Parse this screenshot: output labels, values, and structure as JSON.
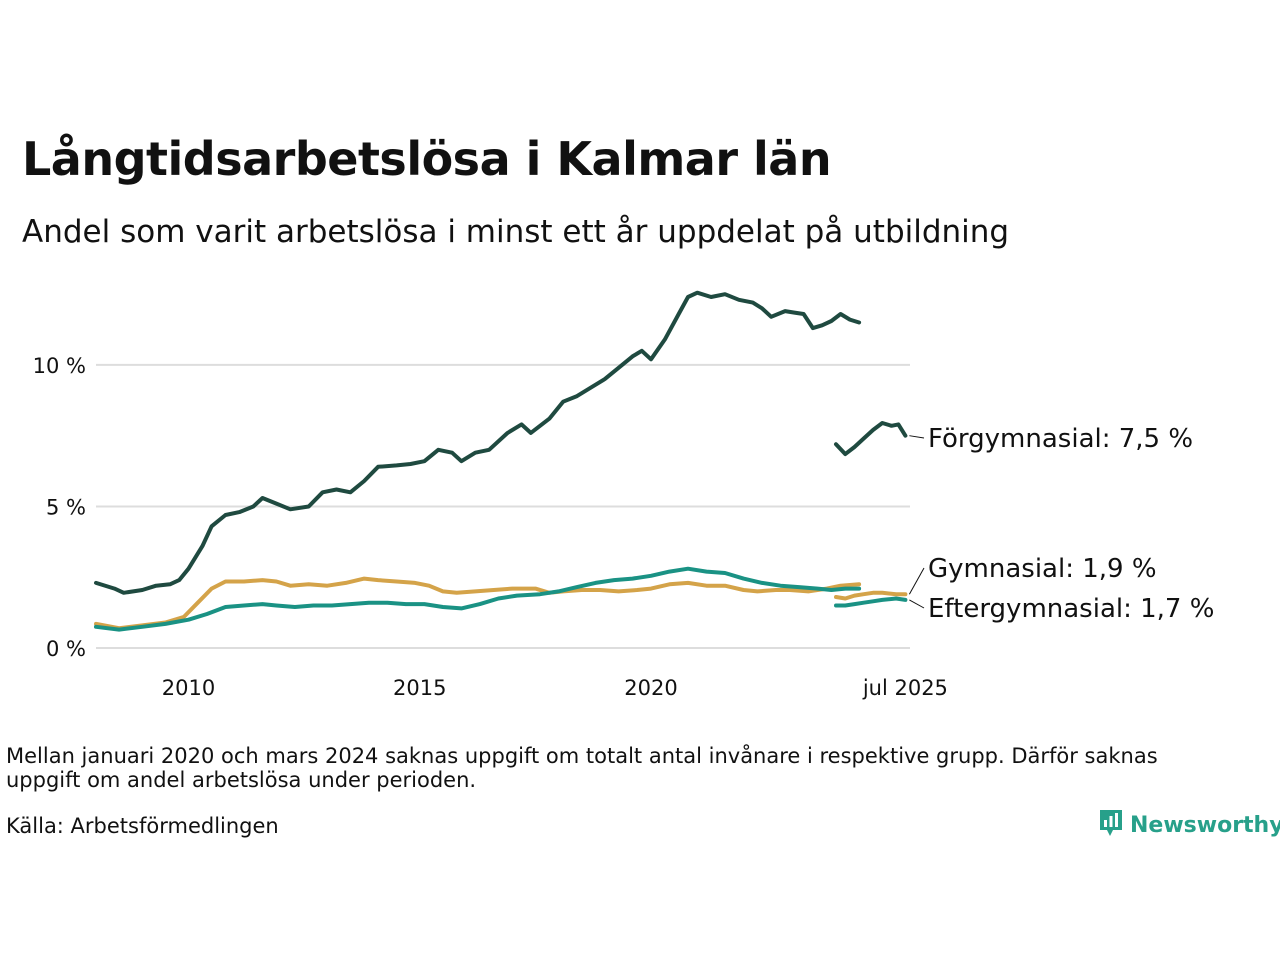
{
  "header": {
    "title": "Långtidsarbetslösa i Kalmar län",
    "subtitle": "Andel som varit arbetslösa i minst ett år uppdelat på utbildning"
  },
  "footer": {
    "note": "Mellan januari 2020 och mars 2024 saknas uppgift om totalt antal invånare i respektive grupp. Därför saknas uppgift om andel arbetslösa under perioden.",
    "source": "Källa: Arbetsförmedlingen",
    "brand": "Newsworthy",
    "brand_icon": "bar-chart-logo-icon"
  },
  "chart_data": {
    "type": "line",
    "x_unit": "date (year-month)",
    "y_unit": "%",
    "ylim": [
      0,
      13
    ],
    "yticks": [
      0,
      5,
      10
    ],
    "ytick_labels": [
      "0 %",
      "5 %",
      "10 %"
    ],
    "xticks": [
      2010,
      2015,
      2020,
      2025.5
    ],
    "xtick_labels": [
      "2010",
      "2015",
      "2020",
      "jul 2025"
    ],
    "xlim": [
      2008.0,
      2025.6
    ],
    "grid": "horizontal",
    "legend": "end-of-line labels",
    "series": [
      {
        "name": "Förgymnasial",
        "label": "Förgymnasial: 7,5 %",
        "color": "#1f4a40",
        "segments": [
          [
            [
              2008.0,
              2.3
            ],
            [
              2008.4,
              2.1
            ],
            [
              2008.6,
              1.95
            ],
            [
              2009.0,
              2.05
            ],
            [
              2009.3,
              2.2
            ],
            [
              2009.6,
              2.25
            ],
            [
              2009.8,
              2.4
            ],
            [
              2010.0,
              2.8
            ],
            [
              2010.3,
              3.6
            ],
            [
              2010.5,
              4.3
            ],
            [
              2010.8,
              4.7
            ],
            [
              2011.1,
              4.8
            ],
            [
              2011.4,
              5.0
            ],
            [
              2011.6,
              5.3
            ],
            [
              2011.9,
              5.1
            ],
            [
              2012.2,
              4.9
            ],
            [
              2012.6,
              5.0
            ],
            [
              2012.9,
              5.5
            ],
            [
              2013.2,
              5.6
            ],
            [
              2013.5,
              5.5
            ],
            [
              2013.8,
              5.9
            ],
            [
              2014.1,
              6.4
            ],
            [
              2014.5,
              6.45
            ],
            [
              2014.8,
              6.5
            ],
            [
              2015.1,
              6.6
            ],
            [
              2015.4,
              7.0
            ],
            [
              2015.7,
              6.9
            ],
            [
              2015.9,
              6.6
            ],
            [
              2016.2,
              6.9
            ],
            [
              2016.5,
              7.0
            ],
            [
              2016.9,
              7.6
            ],
            [
              2017.2,
              7.9
            ],
            [
              2017.4,
              7.6
            ],
            [
              2017.8,
              8.1
            ],
            [
              2018.1,
              8.7
            ],
            [
              2018.4,
              8.9
            ],
            [
              2018.7,
              9.2
            ],
            [
              2019.0,
              9.5
            ],
            [
              2019.3,
              9.9
            ],
            [
              2019.6,
              10.3
            ],
            [
              2019.8,
              10.5
            ],
            [
              2020.0,
              10.2
            ],
            [
              2020.3,
              10.9
            ],
            [
              2020.6,
              11.8
            ],
            [
              2020.8,
              12.4
            ],
            [
              2021.0,
              12.55
            ],
            [
              2021.3,
              12.4
            ],
            [
              2021.6,
              12.5
            ],
            [
              2021.9,
              12.3
            ],
            [
              2022.2,
              12.2
            ],
            [
              2022.4,
              12.0
            ],
            [
              2022.6,
              11.7
            ],
            [
              2022.9,
              11.9
            ],
            [
              2023.1,
              11.85
            ],
            [
              2023.3,
              11.8
            ],
            [
              2023.5,
              11.3
            ],
            [
              2023.7,
              11.4
            ],
            [
              2023.9,
              11.55
            ],
            [
              2024.1,
              11.8
            ],
            [
              2024.3,
              11.6
            ],
            [
              2024.5,
              11.5
            ]
          ],
          [
            [
              2024.0,
              7.2
            ],
            [
              2024.2,
              6.85
            ],
            [
              2024.4,
              7.1
            ],
            [
              2024.6,
              7.4
            ],
            [
              2024.8,
              7.7
            ],
            [
              2025.0,
              7.95
            ],
            [
              2025.2,
              7.85
            ],
            [
              2025.35,
              7.9
            ],
            [
              2025.5,
              7.5
            ]
          ]
        ]
      },
      {
        "name": "Gymnasial",
        "label": "Gymnasial: 1,9 %",
        "color": "#d4a349",
        "segments": [
          [
            [
              2008.0,
              0.85
            ],
            [
              2008.5,
              0.7
            ],
            [
              2009.0,
              0.8
            ],
            [
              2009.5,
              0.9
            ],
            [
              2009.9,
              1.1
            ],
            [
              2010.2,
              1.6
            ],
            [
              2010.5,
              2.1
            ],
            [
              2010.8,
              2.35
            ],
            [
              2011.2,
              2.35
            ],
            [
              2011.6,
              2.4
            ],
            [
              2011.9,
              2.35
            ],
            [
              2012.2,
              2.2
            ],
            [
              2012.6,
              2.25
            ],
            [
              2013.0,
              2.2
            ],
            [
              2013.4,
              2.3
            ],
            [
              2013.8,
              2.45
            ],
            [
              2014.1,
              2.4
            ],
            [
              2014.5,
              2.35
            ],
            [
              2014.9,
              2.3
            ],
            [
              2015.2,
              2.2
            ],
            [
              2015.5,
              2.0
            ],
            [
              2015.8,
              1.95
            ],
            [
              2016.2,
              2.0
            ],
            [
              2016.6,
              2.05
            ],
            [
              2017.0,
              2.1
            ],
            [
              2017.5,
              2.1
            ],
            [
              2017.8,
              1.95
            ],
            [
              2018.1,
              2.0
            ],
            [
              2018.5,
              2.05
            ],
            [
              2018.9,
              2.05
            ],
            [
              2019.3,
              2.0
            ],
            [
              2019.7,
              2.05
            ],
            [
              2020.0,
              2.1
            ],
            [
              2020.4,
              2.25
            ],
            [
              2020.8,
              2.3
            ],
            [
              2021.2,
              2.2
            ],
            [
              2021.6,
              2.2
            ],
            [
              2022.0,
              2.05
            ],
            [
              2022.3,
              2.0
            ],
            [
              2022.7,
              2.05
            ],
            [
              2023.0,
              2.05
            ],
            [
              2023.4,
              2.0
            ],
            [
              2023.8,
              2.1
            ],
            [
              2024.1,
              2.2
            ],
            [
              2024.5,
              2.25
            ]
          ],
          [
            [
              2024.0,
              1.8
            ],
            [
              2024.2,
              1.75
            ],
            [
              2024.4,
              1.85
            ],
            [
              2024.6,
              1.9
            ],
            [
              2024.8,
              1.95
            ],
            [
              2025.0,
              1.95
            ],
            [
              2025.3,
              1.9
            ],
            [
              2025.5,
              1.9
            ]
          ]
        ]
      },
      {
        "name": "Eftergymnasial",
        "label": "Eftergymnasial: 1,7 %",
        "color": "#1a9284",
        "segments": [
          [
            [
              2008.0,
              0.75
            ],
            [
              2008.5,
              0.65
            ],
            [
              2009.0,
              0.75
            ],
            [
              2009.5,
              0.85
            ],
            [
              2010.0,
              1.0
            ],
            [
              2010.4,
              1.2
            ],
            [
              2010.8,
              1.45
            ],
            [
              2011.2,
              1.5
            ],
            [
              2011.6,
              1.55
            ],
            [
              2011.9,
              1.5
            ],
            [
              2012.3,
              1.45
            ],
            [
              2012.7,
              1.5
            ],
            [
              2013.1,
              1.5
            ],
            [
              2013.5,
              1.55
            ],
            [
              2013.9,
              1.6
            ],
            [
              2014.3,
              1.6
            ],
            [
              2014.7,
              1.55
            ],
            [
              2015.1,
              1.55
            ],
            [
              2015.5,
              1.45
            ],
            [
              2015.9,
              1.4
            ],
            [
              2016.3,
              1.55
            ],
            [
              2016.7,
              1.75
            ],
            [
              2017.1,
              1.85
            ],
            [
              2017.6,
              1.9
            ],
            [
              2018.0,
              2.0
            ],
            [
              2018.4,
              2.15
            ],
            [
              2018.8,
              2.3
            ],
            [
              2019.2,
              2.4
            ],
            [
              2019.6,
              2.45
            ],
            [
              2020.0,
              2.55
            ],
            [
              2020.4,
              2.7
            ],
            [
              2020.8,
              2.8
            ],
            [
              2021.2,
              2.7
            ],
            [
              2021.6,
              2.65
            ],
            [
              2022.0,
              2.45
            ],
            [
              2022.4,
              2.3
            ],
            [
              2022.8,
              2.2
            ],
            [
              2023.2,
              2.15
            ],
            [
              2023.6,
              2.1
            ],
            [
              2023.9,
              2.05
            ],
            [
              2024.2,
              2.1
            ],
            [
              2024.5,
              2.1
            ]
          ],
          [
            [
              2024.0,
              1.5
            ],
            [
              2024.2,
              1.5
            ],
            [
              2024.4,
              1.55
            ],
            [
              2024.6,
              1.6
            ],
            [
              2024.8,
              1.65
            ],
            [
              2025.0,
              1.7
            ],
            [
              2025.3,
              1.75
            ],
            [
              2025.5,
              1.7
            ]
          ]
        ]
      }
    ]
  }
}
